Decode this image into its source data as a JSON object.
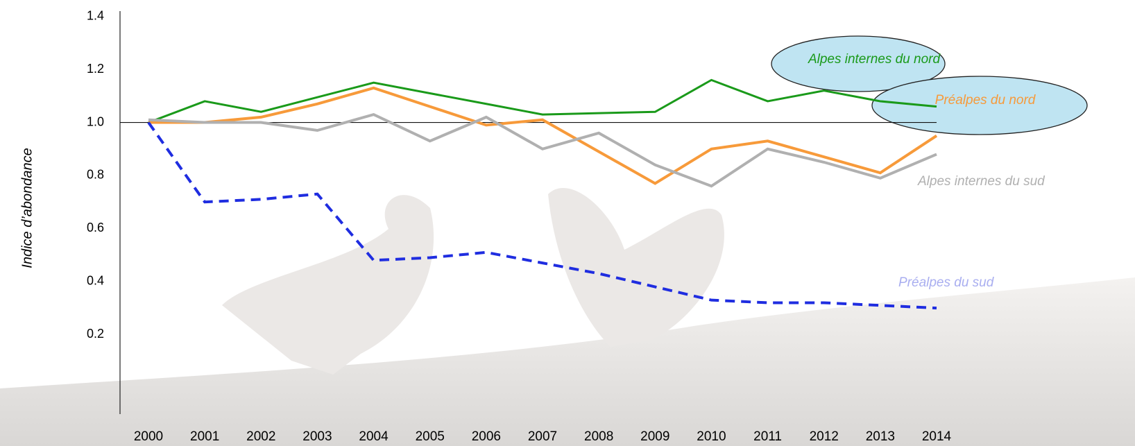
{
  "chart_data": {
    "type": "line",
    "y_label": "Indice d’abondance",
    "x": [
      2000,
      2001,
      2002,
      2003,
      2004,
      2005,
      2006,
      2007,
      2008,
      2009,
      2010,
      2011,
      2012,
      2013,
      2014
    ],
    "xlim": [
      2000,
      2014
    ],
    "ylim": [
      -0.1,
      1.42
    ],
    "yticks": [
      {
        "value": 0.2,
        "label": "0.2"
      },
      {
        "value": 0.4,
        "label": "0.4"
      },
      {
        "value": 0.6,
        "label": "0.6"
      },
      {
        "value": 0.8,
        "label": "0.8"
      },
      {
        "value": 1.0,
        "label": "1.0"
      },
      {
        "value": 1.2,
        "label": "1.2"
      },
      {
        "value": 1.4,
        "label": "1.4"
      }
    ],
    "reference_line": 1.0,
    "series": [
      {
        "name": "Alpes internes du nord",
        "color": "#1a9a1a",
        "dash": false,
        "values": [
          1.0,
          1.08,
          1.04,
          1.095,
          1.15,
          1.11,
          1.07,
          1.03,
          1.035,
          1.04,
          1.16,
          1.08,
          1.12,
          1.08,
          1.06
        ]
      },
      {
        "name": "Préalpes du nord",
        "color": "#f79a3a",
        "dash": false,
        "values": [
          1.0,
          1.0,
          1.02,
          1.07,
          1.13,
          1.06,
          0.99,
          1.01,
          0.89,
          0.77,
          0.9,
          0.93,
          0.87,
          0.81,
          0.95
        ]
      },
      {
        "name": "Alpes internes du sud",
        "color": "#b0b0b0",
        "dash": false,
        "values": [
          1.01,
          1.0,
          1.0,
          0.97,
          1.03,
          0.93,
          1.02,
          0.9,
          0.96,
          0.84,
          0.76,
          0.9,
          0.85,
          0.79,
          0.88
        ]
      },
      {
        "name": "Préalpes du sud",
        "color": "#1f2de0",
        "dash": true,
        "values": [
          1.0,
          0.7,
          0.71,
          0.73,
          0.48,
          0.49,
          0.51,
          0.47,
          0.43,
          0.38,
          0.33,
          0.32,
          0.32,
          0.31,
          0.3
        ]
      }
    ]
  }
}
